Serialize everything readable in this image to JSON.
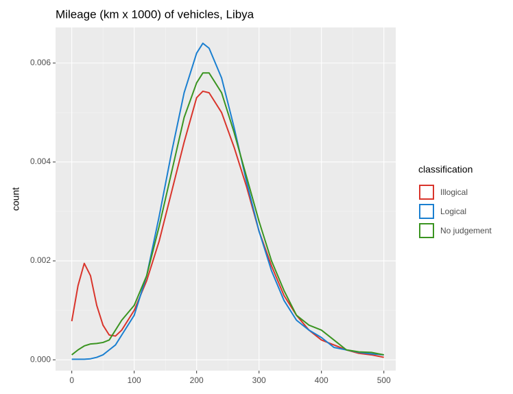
{
  "chart_data": {
    "type": "line",
    "title": "Mileage (km x 1000) of vehicles, Libya",
    "y_label": "count",
    "legend_title": "classification",
    "legend_position": "right",
    "grid": true,
    "x": [
      0,
      10,
      20,
      30,
      40,
      50,
      60,
      70,
      80,
      100,
      120,
      140,
      160,
      180,
      200,
      210,
      220,
      240,
      260,
      280,
      300,
      320,
      340,
      360,
      380,
      400,
      420,
      440,
      460,
      480,
      500
    ],
    "xlim": [
      -26,
      519
    ],
    "xticks": [
      0,
      100,
      200,
      300,
      400,
      500
    ],
    "minor_xticks": [
      50,
      150,
      250,
      350,
      450
    ],
    "ylim": [
      -0.00022,
      0.00672
    ],
    "yticks": [
      {
        "value": 0,
        "label": "0.000"
      },
      0.002,
      0.004,
      0.006
    ],
    "minor_yticks": [
      0.001,
      0.003,
      0.005
    ],
    "series": [
      {
        "name": "Illogical",
        "color": "#d9342b",
        "values": [
          0.00078,
          0.0015,
          0.00195,
          0.0017,
          0.0011,
          0.0007,
          0.0005,
          0.00048,
          0.0006,
          0.001,
          0.0016,
          0.0024,
          0.0034,
          0.0044,
          0.0053,
          0.00543,
          0.0054,
          0.005,
          0.0043,
          0.0035,
          0.0026,
          0.0019,
          0.0013,
          0.0009,
          0.0006,
          0.0004,
          0.0003,
          0.0002,
          0.00013,
          0.0001,
          5e-05
        ]
      },
      {
        "name": "Logical",
        "color": "#1a7fd0",
        "values": [
          1e-05,
          1e-05,
          1e-05,
          2e-05,
          5e-05,
          0.0001,
          0.0002,
          0.0003,
          0.0005,
          0.0009,
          0.0017,
          0.0029,
          0.0042,
          0.0054,
          0.0062,
          0.0064,
          0.0063,
          0.0057,
          0.0047,
          0.0036,
          0.0026,
          0.0018,
          0.0012,
          0.0008,
          0.0006,
          0.00045,
          0.00025,
          0.0002,
          0.00015,
          0.00012,
          0.0001
        ]
      },
      {
        "name": "No judgement",
        "color": "#3a9420",
        "values": [
          0.0001,
          0.0002,
          0.00028,
          0.00032,
          0.00033,
          0.00035,
          0.0004,
          0.0006,
          0.0008,
          0.0011,
          0.0017,
          0.0027,
          0.0038,
          0.0049,
          0.0056,
          0.0058,
          0.0058,
          0.0054,
          0.0046,
          0.0037,
          0.0028,
          0.002,
          0.0014,
          0.0009,
          0.0007,
          0.0006,
          0.0004,
          0.0002,
          0.00016,
          0.00015,
          0.0001
        ]
      }
    ]
  }
}
